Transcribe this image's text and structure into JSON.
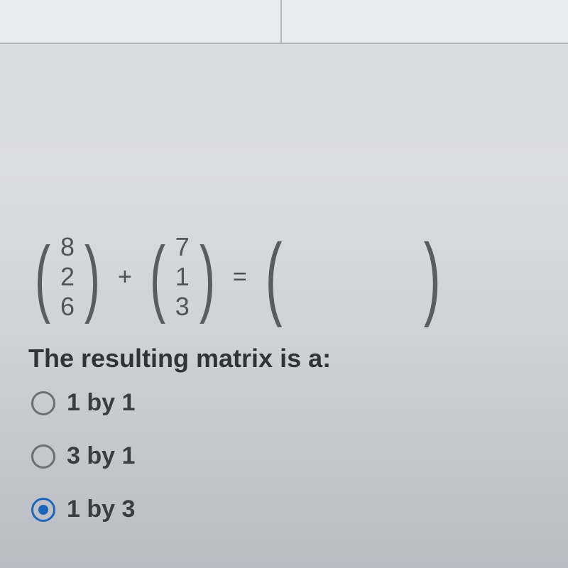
{
  "colors": {
    "accent": "#1f66b8",
    "text_primary": "#2a2b2d",
    "text_secondary": "#535559",
    "paren": "#5a5c61",
    "radio_border": "#6c6e74",
    "header_bg": "#e9eaec",
    "header_border": "#b5b7bc"
  },
  "typography": {
    "prompt_fontsize_pt": 27,
    "option_fontsize_pt": 25,
    "vector_value_fontsize_pt": 27,
    "paren_fontsize_pt": 90
  },
  "equation": {
    "vector_a": [
      "8",
      "2",
      "6"
    ],
    "vector_b": [
      "7",
      "1",
      "3"
    ],
    "operator_plus": "+",
    "operator_equals": "="
  },
  "prompt_text": "The resulting matrix is a:",
  "options": [
    {
      "label": "1 by 1",
      "selected": false
    },
    {
      "label": "3 by 1",
      "selected": false
    },
    {
      "label": "1 by 3",
      "selected": true
    }
  ]
}
